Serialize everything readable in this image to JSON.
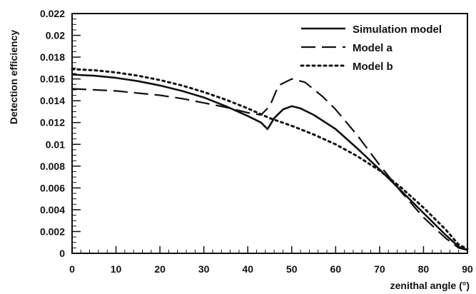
{
  "chart_data": {
    "type": "line",
    "xlabel": "zenithal angle (°)",
    "ylabel": "Detection efficiency",
    "xlim": [
      0,
      90
    ],
    "ylim": [
      0,
      0.022
    ],
    "x_ticks": [
      0,
      10,
      20,
      30,
      40,
      50,
      60,
      70,
      80,
      90
    ],
    "x_tick_labels": [
      "0",
      "10",
      "20",
      "30",
      "40",
      "50",
      "60",
      "70",
      "80",
      "90"
    ],
    "y_ticks": [
      0,
      0.002,
      0.004,
      0.006,
      0.008,
      0.01,
      0.012,
      0.014,
      0.016,
      0.018,
      0.02,
      0.022
    ],
    "y_tick_labels": [
      "0",
      "0.002",
      "0.004",
      "0.006",
      "0.008",
      "0.01",
      "0.012",
      "0.014",
      "0.016",
      "0.018",
      "0.02",
      "0.022"
    ],
    "grid": false,
    "legend_position": "top-right",
    "series": [
      {
        "name": "Simulation model",
        "style": "solid",
        "color": "#111111",
        "points": [
          [
            0,
            0.0164
          ],
          [
            5,
            0.0163
          ],
          [
            10,
            0.0161
          ],
          [
            15,
            0.0158
          ],
          [
            20,
            0.0154
          ],
          [
            25,
            0.0149
          ],
          [
            30,
            0.0143
          ],
          [
            35,
            0.0135
          ],
          [
            40,
            0.0126
          ],
          [
            43,
            0.012
          ],
          [
            44.5,
            0.0114
          ],
          [
            46,
            0.0124
          ],
          [
            48,
            0.0132
          ],
          [
            50,
            0.0135
          ],
          [
            52,
            0.0133
          ],
          [
            55,
            0.0127
          ],
          [
            60,
            0.0114
          ],
          [
            65,
            0.0096
          ],
          [
            70,
            0.0077
          ],
          [
            75,
            0.0057
          ],
          [
            80,
            0.0037
          ],
          [
            85,
            0.0017
          ],
          [
            88,
            0.0006
          ],
          [
            90,
            0.0003
          ]
        ]
      },
      {
        "name": "Model a",
        "style": "long-dash",
        "color": "#111111",
        "points": [
          [
            0,
            0.0151
          ],
          [
            5,
            0.015
          ],
          [
            10,
            0.0149
          ],
          [
            15,
            0.0147
          ],
          [
            20,
            0.0145
          ],
          [
            25,
            0.0142
          ],
          [
            30,
            0.0138
          ],
          [
            35,
            0.0134
          ],
          [
            40,
            0.0129
          ],
          [
            43,
            0.0127
          ],
          [
            45,
            0.0135
          ],
          [
            47,
            0.0154
          ],
          [
            50,
            0.016
          ],
          [
            53,
            0.0157
          ],
          [
            57,
            0.0144
          ],
          [
            60,
            0.0132
          ],
          [
            65,
            0.0108
          ],
          [
            70,
            0.0081
          ],
          [
            75,
            0.0056
          ],
          [
            80,
            0.0033
          ],
          [
            85,
            0.0014
          ],
          [
            88,
            0.0005
          ],
          [
            90,
            0.0003
          ]
        ]
      },
      {
        "name": "Model b",
        "style": "dotted",
        "color": "#111111",
        "points": [
          [
            0,
            0.0169
          ],
          [
            5,
            0.0168
          ],
          [
            10,
            0.0166
          ],
          [
            15,
            0.0163
          ],
          [
            20,
            0.0159
          ],
          [
            25,
            0.0154
          ],
          [
            30,
            0.0148
          ],
          [
            35,
            0.0141
          ],
          [
            40,
            0.0133
          ],
          [
            45,
            0.0124
          ],
          [
            50,
            0.0117
          ],
          [
            55,
            0.0109
          ],
          [
            60,
            0.01
          ],
          [
            65,
            0.0089
          ],
          [
            70,
            0.0076
          ],
          [
            75,
            0.006
          ],
          [
            80,
            0.0042
          ],
          [
            85,
            0.0022
          ],
          [
            88,
            0.0008
          ],
          [
            90,
            0.0004
          ]
        ]
      }
    ]
  }
}
